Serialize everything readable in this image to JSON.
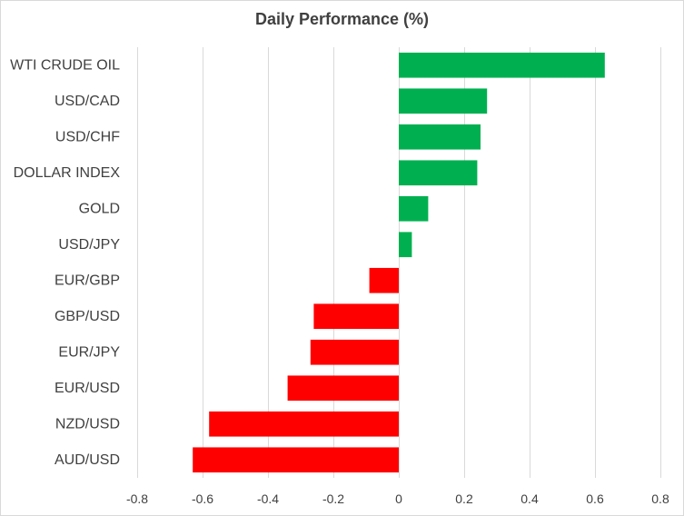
{
  "chart_data": {
    "type": "bar",
    "orientation": "horizontal",
    "title": "Daily Performance (%)",
    "xlabel": "",
    "ylabel": "",
    "categories": [
      "WTI CRUDE OIL",
      "USD/CAD",
      "USD/CHF",
      "DOLLAR INDEX",
      "GOLD",
      "USD/JPY",
      "EUR/GBP",
      "GBP/USD",
      "EUR/JPY",
      "EUR/USD",
      "NZD/USD",
      "AUD/USD"
    ],
    "values": [
      0.63,
      0.27,
      0.25,
      0.24,
      0.09,
      0.04,
      -0.09,
      -0.26,
      -0.27,
      -0.34,
      -0.58,
      -0.63
    ],
    "xlim": [
      -0.8,
      0.8
    ],
    "xticks": [
      -0.8,
      -0.6,
      -0.4,
      -0.2,
      0,
      0.2,
      0.4,
      0.6,
      0.8
    ],
    "xtick_labels": [
      "-0.8",
      "-0.6",
      "-0.4",
      "-0.2",
      "0",
      "0.2",
      "0.4",
      "0.6",
      "0.8"
    ],
    "grid": "vertical",
    "legend": "none",
    "colors": {
      "positive": "#00b050",
      "negative": "#ff0000",
      "grid": "#d9d9d9",
      "text": "#404040"
    }
  }
}
